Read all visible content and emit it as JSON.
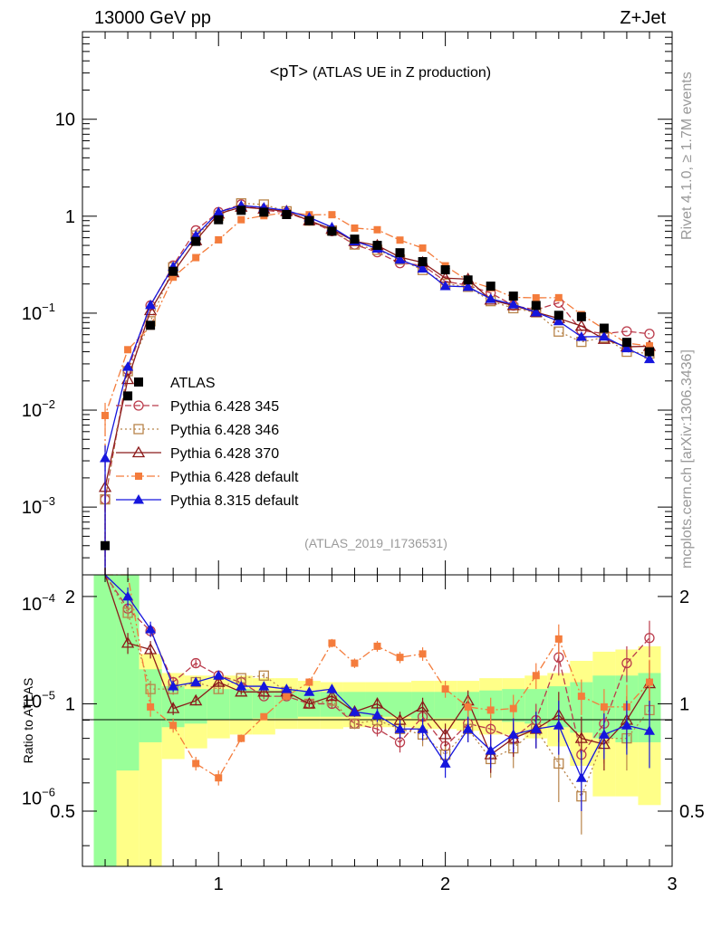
{
  "header": {
    "left": "13000 GeV pp",
    "right": "Z+Jet"
  },
  "side_labels": {
    "rivet": "Rivet 4.1.0, ≥ 1.7M events",
    "mcplots": "mcplots.cern.ch [arXiv:1306.3436]"
  },
  "analysis_ref": "(ATLAS_2019_I1736531)",
  "chart_data": {
    "type": "line",
    "title": "<pT>",
    "subtitle": "(ATLAS UE in Z production)",
    "xlabel": "",
    "ylabel": "",
    "ratio_ylabel": "Ratio to ATLAS",
    "xlim": [
      0.4,
      3.0
    ],
    "ylim": [
      0.0002,
      80
    ],
    "ratio_ylim": [
      0.35,
      2.3
    ],
    "x_ticks": [
      "1",
      "2",
      "3"
    ],
    "y_ticks": [
      "10^-6",
      "10^-5",
      "10^-4",
      "10^-3",
      "10^-2",
      "10^-1",
      "1",
      "10"
    ],
    "ratio_ticks": [
      "0.5",
      "1",
      "2"
    ],
    "x": [
      0.5,
      0.6,
      0.7,
      0.8,
      0.9,
      1.0,
      1.1,
      1.2,
      1.3,
      1.4,
      1.5,
      1.6,
      1.7,
      1.8,
      1.9,
      2.0,
      2.1,
      2.2,
      2.3,
      2.4,
      2.5,
      2.6,
      2.7,
      2.8,
      2.9
    ],
    "data": {
      "name": "ATLAS",
      "values": [
        0.0004,
        0.014,
        0.075,
        0.27,
        0.55,
        0.92,
        1.15,
        1.1,
        1.04,
        0.9,
        0.7,
        0.58,
        0.5,
        0.42,
        0.34,
        0.28,
        0.22,
        0.19,
        0.15,
        0.12,
        0.095,
        0.092,
        0.07,
        0.05,
        0.04
      ]
    },
    "band_outer": [
      2.3,
      2.3,
      1.38,
      1.22,
      1.2,
      1.2,
      1.2,
      1.18,
      1.18,
      1.16,
      1.15,
      1.15,
      1.15,
      1.15,
      1.16,
      1.16,
      1.16,
      1.18,
      1.18,
      1.2,
      1.22,
      1.32,
      1.4,
      1.42,
      1.45
    ],
    "band_outer_low": [
      0.35,
      0.35,
      0.35,
      0.7,
      0.75,
      0.8,
      0.82,
      0.82,
      0.85,
      0.85,
      0.85,
      0.86,
      0.86,
      0.86,
      0.85,
      0.85,
      0.84,
      0.82,
      0.82,
      0.8,
      0.76,
      0.67,
      0.55,
      0.55,
      0.52
    ],
    "band_inner": [
      2.3,
      2.3,
      1.25,
      1.12,
      1.1,
      1.1,
      1.1,
      1.09,
      1.09,
      1.08,
      1.08,
      1.08,
      1.08,
      1.08,
      1.08,
      1.08,
      1.08,
      1.09,
      1.1,
      1.1,
      1.12,
      1.15,
      1.2,
      1.2,
      1.22
    ],
    "band_inner_low": [
      0.35,
      0.65,
      0.78,
      0.86,
      0.88,
      0.9,
      0.9,
      0.91,
      0.91,
      0.92,
      0.92,
      0.92,
      0.92,
      0.92,
      0.91,
      0.91,
      0.9,
      0.9,
      0.89,
      0.88,
      0.86,
      0.83,
      0.8,
      0.78,
      0.78
    ],
    "series": [
      {
        "name": "Pythia 6.428 345",
        "color": "#bb3c4c",
        "marker": "circle-open",
        "dash": "7,3",
        "ratio": [
          3.0,
          1.85,
          1.6,
          1.15,
          1.3,
          1.2,
          1.15,
          1.05,
          1.05,
          1.0,
          1.0,
          0.88,
          0.85,
          0.78,
          0.92,
          0.76,
          0.88,
          0.85,
          0.8,
          0.9,
          1.35,
          0.72,
          0.88,
          1.3,
          1.53
        ],
        "ratio_err": [
          0.3,
          0.07,
          0.06,
          0.04,
          0.03,
          0.03,
          0.02,
          0.02,
          0.02,
          0.02,
          0.03,
          0.03,
          0.04,
          0.05,
          0.06,
          0.06,
          0.07,
          0.08,
          0.09,
          0.1,
          0.15,
          0.12,
          0.12,
          0.15,
          0.18
        ]
      },
      {
        "name": "Pythia 6.428 346",
        "color": "#b8844a",
        "marker": "square-open",
        "dash": "2,3",
        "ratio": [
          3.0,
          1.8,
          1.1,
          1.1,
          1.15,
          1.1,
          1.18,
          1.2,
          1.08,
          1.0,
          1.02,
          0.88,
          0.9,
          0.85,
          0.82,
          0.72,
          0.85,
          0.7,
          0.75,
          0.85,
          0.68,
          0.55,
          0.8,
          0.8,
          0.96
        ],
        "ratio_err": [
          0.3,
          0.07,
          0.06,
          0.04,
          0.03,
          0.03,
          0.02,
          0.02,
          0.02,
          0.02,
          0.03,
          0.03,
          0.04,
          0.05,
          0.06,
          0.06,
          0.07,
          0.08,
          0.09,
          0.1,
          0.15,
          0.12,
          0.12,
          0.15,
          0.18
        ]
      },
      {
        "name": "Pythia 6.428 370",
        "color": "#8b1a1a",
        "marker": "triangle-open",
        "dash": "",
        "ratio": [
          4.0,
          1.48,
          1.42,
          0.97,
          1.02,
          1.15,
          1.08,
          1.08,
          1.08,
          1.0,
          1.05,
          0.95,
          1.0,
          0.9,
          0.98,
          0.82,
          1.02,
          0.72,
          0.8,
          0.85,
          0.93,
          0.8,
          0.77,
          0.9,
          1.14
        ],
        "ratio_err": [
          0.3,
          0.1,
          0.08,
          0.04,
          0.03,
          0.03,
          0.02,
          0.02,
          0.02,
          0.02,
          0.03,
          0.03,
          0.04,
          0.05,
          0.06,
          0.06,
          0.07,
          0.08,
          0.09,
          0.1,
          0.15,
          0.12,
          0.12,
          0.15,
          0.18
        ]
      },
      {
        "name": "Pythia 6.428 default",
        "color": "#f47c3c",
        "marker": "square-filled",
        "dash": "9,3,2,3",
        "ratio": [
          22.0,
          3.0,
          0.98,
          0.87,
          0.68,
          0.62,
          0.8,
          0.92,
          1.05,
          1.15,
          1.48,
          1.3,
          1.45,
          1.35,
          1.38,
          1.1,
          0.98,
          0.96,
          0.97,
          1.2,
          1.52,
          1.05,
          0.98,
          0.98,
          1.15
        ],
        "ratio_err": [
          2.0,
          0.15,
          0.06,
          0.04,
          0.03,
          0.03,
          0.02,
          0.02,
          0.02,
          0.03,
          0.04,
          0.04,
          0.05,
          0.05,
          0.06,
          0.06,
          0.07,
          0.08,
          0.09,
          0.1,
          0.15,
          0.12,
          0.12,
          0.15,
          0.18
        ]
      },
      {
        "name": "Pythia 8.315 default",
        "color": "#1616dd",
        "marker": "triangle-filled",
        "dash": "",
        "ratio": [
          8.0,
          2.0,
          1.62,
          1.12,
          1.15,
          1.2,
          1.12,
          1.12,
          1.1,
          1.08,
          1.1,
          0.95,
          0.93,
          0.85,
          0.85,
          0.68,
          0.85,
          0.74,
          0.82,
          0.85,
          0.87,
          0.62,
          0.82,
          0.87,
          0.84
        ],
        "ratio_err": [
          1.0,
          0.12,
          0.08,
          0.04,
          0.03,
          0.03,
          0.02,
          0.02,
          0.02,
          0.02,
          0.03,
          0.03,
          0.04,
          0.05,
          0.06,
          0.06,
          0.07,
          0.08,
          0.09,
          0.1,
          0.15,
          0.12,
          0.12,
          0.15,
          0.18
        ]
      }
    ]
  }
}
